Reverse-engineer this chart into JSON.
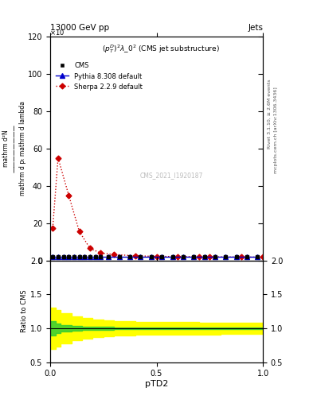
{
  "title_left": "13000 GeV pp",
  "title_right": "Jets",
  "subtitle": "$(p_T^D)^2\\lambda\\_0^2$ (CMS jet substructure)",
  "watermark": "CMS_2021_I1920187",
  "right_label_top": "Rivet 3.1.10, ≥ 2.6M events",
  "right_label_bot": "mcplots.cern.ch [arXiv:1306.3436]",
  "ylabel_main_lines": [
    "mathrm d²N",
    "mathrm d p_T mathrm d lambda"
  ],
  "ylabel_ratio": "Ratio to CMS",
  "xlabel": "pTD2",
  "ylim_main": [
    0,
    120
  ],
  "ylim_ratio": [
    0.5,
    2.0
  ],
  "xlim": [
    0.0,
    1.0
  ],
  "cms_x": [
    0.0125,
    0.0375,
    0.0625,
    0.0875,
    0.1125,
    0.1375,
    0.1625,
    0.1875,
    0.2125,
    0.2375,
    0.275,
    0.325,
    0.375,
    0.425,
    0.475,
    0.525,
    0.575,
    0.625,
    0.675,
    0.725,
    0.775,
    0.825,
    0.875,
    0.925,
    0.975
  ],
  "cms_y": [
    2.0,
    2.0,
    2.0,
    2.0,
    2.0,
    2.0,
    2.0,
    2.0,
    2.0,
    2.0,
    2.0,
    2.0,
    2.0,
    2.0,
    2.0,
    2.0,
    2.0,
    2.0,
    2.0,
    2.0,
    2.0,
    2.0,
    2.0,
    2.0,
    2.0
  ],
  "pythia_x": [
    0.0125,
    0.0375,
    0.0625,
    0.0875,
    0.1125,
    0.1375,
    0.1625,
    0.1875,
    0.2125,
    0.2375,
    0.275,
    0.325,
    0.375,
    0.425,
    0.475,
    0.525,
    0.575,
    0.625,
    0.675,
    0.725,
    0.775,
    0.825,
    0.875,
    0.925,
    0.975
  ],
  "pythia_y": [
    2.0,
    2.0,
    2.0,
    2.0,
    2.0,
    2.0,
    2.0,
    2.0,
    2.0,
    2.0,
    2.0,
    2.0,
    2.0,
    2.0,
    2.0,
    2.0,
    2.0,
    2.0,
    2.0,
    2.0,
    2.0,
    2.0,
    2.0,
    2.0,
    2.0
  ],
  "sherpa_x": [
    0.0125,
    0.0375,
    0.0875,
    0.1375,
    0.1875,
    0.2375,
    0.3,
    0.4,
    0.5,
    0.6,
    0.7,
    0.75,
    0.9,
    1.0
  ],
  "sherpa_y": [
    17.5,
    55.0,
    35.0,
    15.5,
    6.5,
    4.0,
    3.2,
    2.5,
    2.2,
    2.1,
    2.0,
    2.0,
    1.8,
    1.8
  ],
  "ratio_x_steps": [
    0.0,
    0.025,
    0.05,
    0.1,
    0.15,
    0.2,
    0.25,
    0.3,
    0.35,
    0.4,
    0.5,
    0.6,
    0.7,
    0.8,
    0.9,
    1.0
  ],
  "ratio_green_y1": [
    0.9,
    0.93,
    0.955,
    0.965,
    0.972,
    0.978,
    0.982,
    0.985,
    0.987,
    0.989,
    0.99,
    0.991,
    0.992,
    0.992,
    0.993,
    0.993
  ],
  "ratio_green_y2": [
    1.1,
    1.07,
    1.045,
    1.035,
    1.028,
    1.022,
    1.018,
    1.015,
    1.013,
    1.011,
    1.01,
    1.009,
    1.008,
    1.008,
    1.007,
    1.007
  ],
  "ratio_yellow_y1": [
    0.7,
    0.73,
    0.78,
    0.82,
    0.85,
    0.87,
    0.88,
    0.895,
    0.9,
    0.905,
    0.908,
    0.91,
    0.912,
    0.913,
    0.914,
    0.915
  ],
  "ratio_yellow_y2": [
    1.3,
    1.27,
    1.22,
    1.18,
    1.15,
    1.13,
    1.12,
    1.105,
    1.1,
    1.095,
    1.092,
    1.09,
    1.088,
    1.087,
    1.086,
    1.085
  ],
  "cms_color": "black",
  "pythia_color": "#0000cc",
  "sherpa_color": "#cc0000",
  "green_band_color": "#33cc33",
  "yellow_band_color": "#ffff00",
  "yticks_main": [
    0,
    20,
    40,
    60,
    80,
    100,
    120
  ],
  "yticks_ratio": [
    0.5,
    1.0,
    1.5,
    2.0
  ],
  "xticks_ratio": [
    0.0,
    0.5,
    1.0
  ]
}
